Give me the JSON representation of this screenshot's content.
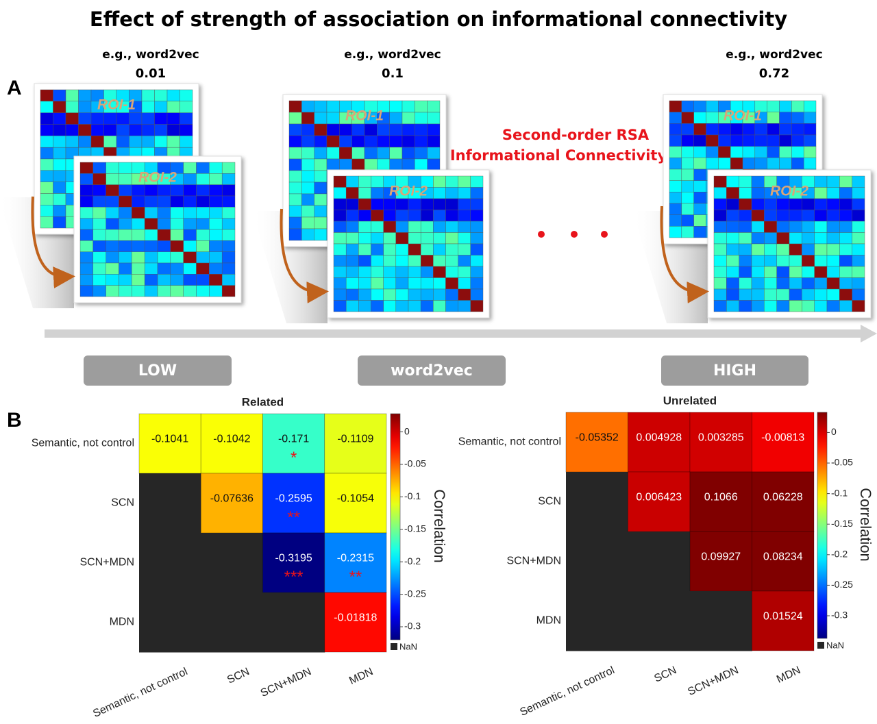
{
  "title": "Effect of strength of association on informational connectivity",
  "panel_a": {
    "label": "A",
    "examples": [
      {
        "caption": "e.g., word2vec",
        "value": 0.01
      },
      {
        "caption": "e.g., word2vec",
        "value": 0.1
      },
      {
        "caption": "e.g., word2vec",
        "value": 0.72
      }
    ],
    "roi_labels": [
      "ROI-1",
      "ROI-2"
    ],
    "annotation": [
      "Second-order RSA",
      "Informational Connectivity"
    ],
    "scale_labels": [
      "LOW",
      "word2vec",
      "HIGH"
    ]
  },
  "panel_b": {
    "label": "B"
  },
  "chart_data": [
    {
      "type": "heatmap",
      "title": "Related",
      "categories": [
        "Semantic, not control",
        "SCN",
        "SCN+MDN",
        "MDN"
      ],
      "values": [
        [
          -0.1041,
          -0.1042,
          -0.171,
          -0.1109
        ],
        [
          null,
          -0.07636,
          -0.2595,
          -0.1054
        ],
        [
          null,
          null,
          -0.3195,
          -0.2315
        ],
        [
          null,
          null,
          null,
          -0.01818
        ]
      ],
      "significance": [
        [
          null,
          null,
          "*",
          null
        ],
        [
          null,
          null,
          "**",
          null
        ],
        [
          null,
          null,
          "***",
          "**"
        ],
        [
          null,
          null,
          null,
          null
        ]
      ],
      "colormap": "jet",
      "clim": [
        -0.32,
        0.028
      ],
      "cticks": [
        0,
        -0.05,
        -0.1,
        -0.15,
        -0.2,
        -0.25,
        -0.3
      ],
      "colorbar_label": "Correlation",
      "missing_label": "NaN",
      "missing_color": "#262626"
    },
    {
      "type": "heatmap",
      "title": "Unrelated",
      "categories": [
        "Semantic, not control",
        "SCN",
        "SCN+MDN",
        "MDN"
      ],
      "values": [
        [
          -0.05352,
          0.004928,
          0.003285,
          -0.00813
        ],
        [
          null,
          0.006423,
          0.1066,
          0.06228
        ],
        [
          null,
          null,
          0.09927,
          0.08234
        ],
        [
          null,
          null,
          null,
          0.01524
        ]
      ],
      "significance": [
        [
          null,
          null,
          null,
          null
        ],
        [
          null,
          null,
          null,
          null
        ],
        [
          null,
          null,
          null,
          null
        ],
        [
          null,
          null,
          null,
          null
        ]
      ],
      "colormap": "jet",
      "clim": [
        -0.337,
        0.033
      ],
      "cticks": [
        0,
        -0.05,
        -0.1,
        -0.15,
        -0.2,
        -0.25,
        -0.3
      ],
      "colorbar_label": "Correlation",
      "missing_label": "NaN",
      "missing_color": "#262626"
    }
  ]
}
